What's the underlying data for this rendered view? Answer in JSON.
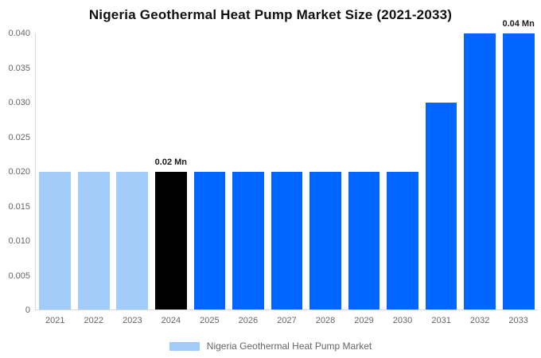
{
  "title": "Nigeria Geothermal Heat Pump Market Size (2021-2033)",
  "legend": {
    "label": "Nigeria Geothermal Heat Pump Market",
    "swatch_color": "#a2cdfa"
  },
  "colors": {
    "historical_bar": "#a2cdfa",
    "base_year_bar": "#000000",
    "forecast_bar": "#0066ff",
    "axis_line": "#d9d9d9",
    "tick_text": "#666666",
    "annotation_text": "#1a1a1a"
  },
  "chart_data": {
    "type": "bar",
    "title": "Nigeria Geothermal Heat Pump Market Size (2021-2033)",
    "xlabel": "",
    "ylabel": "",
    "categories": [
      "2021",
      "2022",
      "2023",
      "2024",
      "2025",
      "2026",
      "2027",
      "2028",
      "2029",
      "2030",
      "2031",
      "2032",
      "2033"
    ],
    "series": [
      {
        "name": "Nigeria Geothermal Heat Pump Market",
        "values": [
          0.02,
          0.02,
          0.02,
          0.02,
          0.02,
          0.02,
          0.02,
          0.02,
          0.02,
          0.02,
          0.03,
          0.04,
          0.04
        ],
        "unit": "Mn"
      }
    ],
    "bar_colors": [
      "#a2cdfa",
      "#a2cdfa",
      "#a2cdfa",
      "#000000",
      "#0066ff",
      "#0066ff",
      "#0066ff",
      "#0066ff",
      "#0066ff",
      "#0066ff",
      "#0066ff",
      "#0066ff",
      "#0066ff"
    ],
    "annotations": {
      "3": "0.02 Mn",
      "12": "0.04 Mn"
    },
    "ylim": [
      0,
      0.04
    ],
    "yticks": [
      {
        "value": 0.04,
        "label": "0.040"
      },
      {
        "value": 0.035,
        "label": "0.035"
      },
      {
        "value": 0.03,
        "label": "0.030"
      },
      {
        "value": 0.025,
        "label": "0.025"
      },
      {
        "value": 0.02,
        "label": "0.020"
      },
      {
        "value": 0.015,
        "label": "0.015"
      },
      {
        "value": 0.01,
        "label": "0.010"
      },
      {
        "value": 0.005,
        "label": "0.005"
      },
      {
        "value": 0,
        "label": "0"
      }
    ],
    "grid": false,
    "legend_position": "bottom"
  }
}
